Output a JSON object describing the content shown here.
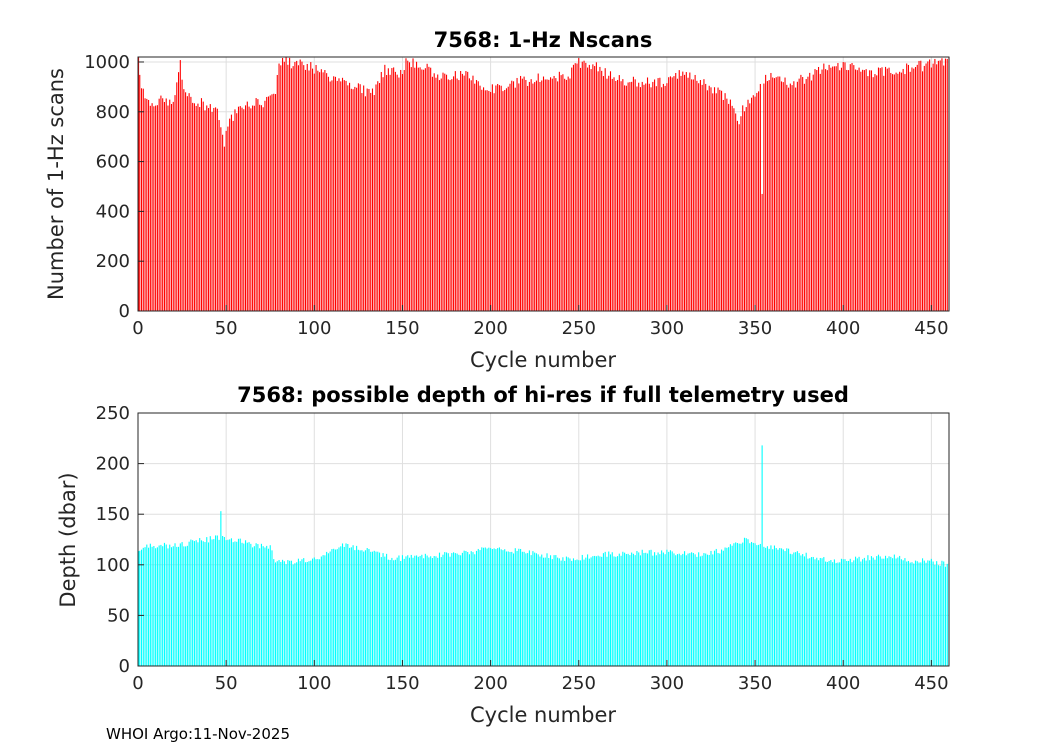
{
  "footer": "WHOI Argo:11-Nov-2025",
  "chart_data": [
    {
      "type": "bar",
      "title": "7568: 1-Hz Nscans",
      "xlabel": "Cycle number",
      "ylabel": "Number of 1-Hz scans",
      "xlim": [
        0,
        460
      ],
      "ylim": [
        0,
        1020
      ],
      "xticks": [
        0,
        50,
        100,
        150,
        200,
        250,
        300,
        350,
        400,
        450
      ],
      "yticks": [
        0,
        200,
        400,
        600,
        800,
        1000
      ],
      "grid": true,
      "bar_color": "#ff0000",
      "profile": [
        [
          0,
          1000
        ],
        [
          2,
          900
        ],
        [
          5,
          850
        ],
        [
          10,
          840
        ],
        [
          20,
          850
        ],
        [
          24,
          990
        ],
        [
          27,
          860
        ],
        [
          30,
          850
        ],
        [
          35,
          840
        ],
        [
          45,
          800
        ],
        [
          48,
          720
        ],
        [
          52,
          760
        ],
        [
          55,
          790
        ],
        [
          60,
          830
        ],
        [
          65,
          835
        ],
        [
          70,
          830
        ],
        [
          75,
          860
        ],
        [
          78,
          880
        ],
        [
          80,
          1000
        ],
        [
          95,
          990
        ],
        [
          100,
          970
        ],
        [
          110,
          930
        ],
        [
          118,
          920
        ],
        [
          125,
          900
        ],
        [
          130,
          880
        ],
        [
          135,
          890
        ],
        [
          140,
          970
        ],
        [
          150,
          950
        ],
        [
          152,
          1000
        ],
        [
          160,
          990
        ],
        [
          165,
          970
        ],
        [
          170,
          940
        ],
        [
          180,
          950
        ],
        [
          190,
          940
        ],
        [
          198,
          880
        ],
        [
          205,
          900
        ],
        [
          215,
          920
        ],
        [
          225,
          930
        ],
        [
          235,
          940
        ],
        [
          245,
          950
        ],
        [
          250,
          1000
        ],
        [
          260,
          980
        ],
        [
          265,
          960
        ],
        [
          270,
          930
        ],
        [
          280,
          920
        ],
        [
          290,
          920
        ],
        [
          300,
          920
        ],
        [
          310,
          960
        ],
        [
          320,
          920
        ],
        [
          330,
          880
        ],
        [
          336,
          830
        ],
        [
          340,
          780
        ],
        [
          345,
          830
        ],
        [
          350,
          880
        ],
        [
          355,
          920
        ],
        [
          360,
          960
        ],
        [
          370,
          910
        ],
        [
          380,
          940
        ],
        [
          390,
          980
        ],
        [
          400,
          990
        ],
        [
          405,
          980
        ],
        [
          410,
          950
        ],
        [
          420,
          960
        ],
        [
          430,
          960
        ],
        [
          440,
          980
        ],
        [
          450,
          990
        ],
        [
          460,
          1010
        ]
      ],
      "spikes": [
        [
          49,
          660
        ],
        [
          341,
          750
        ],
        [
          354,
          470
        ]
      ],
      "values_note_unit": "scans"
    },
    {
      "type": "bar",
      "title": "7568: possible depth of hi-res if full telemetry used",
      "xlabel": "Cycle number",
      "ylabel": "Depth (dbar)",
      "xlim": [
        0,
        460
      ],
      "ylim": [
        0,
        250
      ],
      "xticks": [
        0,
        50,
        100,
        150,
        200,
        250,
        300,
        350,
        400,
        450
      ],
      "yticks": [
        0,
        50,
        100,
        150,
        200,
        250
      ],
      "grid": true,
      "bar_color": "#00ffff",
      "profile": [
        [
          0,
          115
        ],
        [
          5,
          120
        ],
        [
          20,
          118
        ],
        [
          30,
          122
        ],
        [
          40,
          125
        ],
        [
          47,
          128
        ],
        [
          55,
          125
        ],
        [
          65,
          120
        ],
        [
          75,
          118
        ],
        [
          78,
          102
        ],
        [
          90,
          103
        ],
        [
          100,
          106
        ],
        [
          110,
          114
        ],
        [
          118,
          120
        ],
        [
          125,
          116
        ],
        [
          135,
          112
        ],
        [
          145,
          106
        ],
        [
          160,
          108
        ],
        [
          175,
          110
        ],
        [
          190,
          112
        ],
        [
          200,
          118
        ],
        [
          210,
          115
        ],
        [
          220,
          112
        ],
        [
          235,
          108
        ],
        [
          245,
          106
        ],
        [
          255,
          108
        ],
        [
          265,
          110
        ],
        [
          280,
          112
        ],
        [
          300,
          112
        ],
        [
          315,
          110
        ],
        [
          330,
          114
        ],
        [
          338,
          122
        ],
        [
          345,
          125
        ],
        [
          350,
          122
        ],
        [
          356,
          118
        ],
        [
          365,
          116
        ],
        [
          375,
          110
        ],
        [
          390,
          106
        ],
        [
          400,
          104
        ],
        [
          410,
          106
        ],
        [
          420,
          108
        ],
        [
          430,
          108
        ],
        [
          440,
          104
        ],
        [
          450,
          103
        ],
        [
          460,
          100
        ]
      ],
      "spikes": [
        [
          47,
          153
        ],
        [
          354,
          218
        ]
      ]
    }
  ]
}
